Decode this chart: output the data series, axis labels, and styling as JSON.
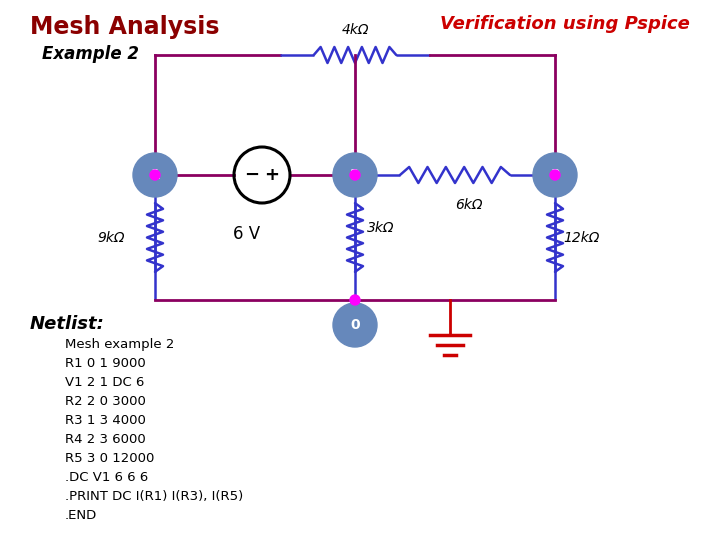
{
  "title": "Mesh Analysis",
  "subtitle": "Example 2",
  "verification_text": "Verification using Pspice",
  "bg_color": "#ffffff",
  "title_color": "#8B0000",
  "verification_color": "#cc0000",
  "node_color": "#6688bb",
  "node_text_color": "#ffffff",
  "wire_color_h": "#8B0060",
  "wire_color_v": "#8B0060",
  "resistor_color_blue": "#3333cc",
  "resistor_color_top": "#cc0000",
  "voltage_source_color": "#000000",
  "ground_color": "#cc0000",
  "dot_color": "#ff00ff",
  "netlist_title": "Netlist:",
  "netlist_lines": [
    "Mesh example 2",
    "R1 0 1 9000",
    "V1 2 1 DC 6",
    "R2 2 0 3000",
    "R3 1 3 4000",
    "R4 2 3 6000",
    "R5 3 0 12000",
    ".DC V1 6 6 6",
    ".PRINT DC I(R1) I(R3), I(R5)",
    ".END"
  ]
}
